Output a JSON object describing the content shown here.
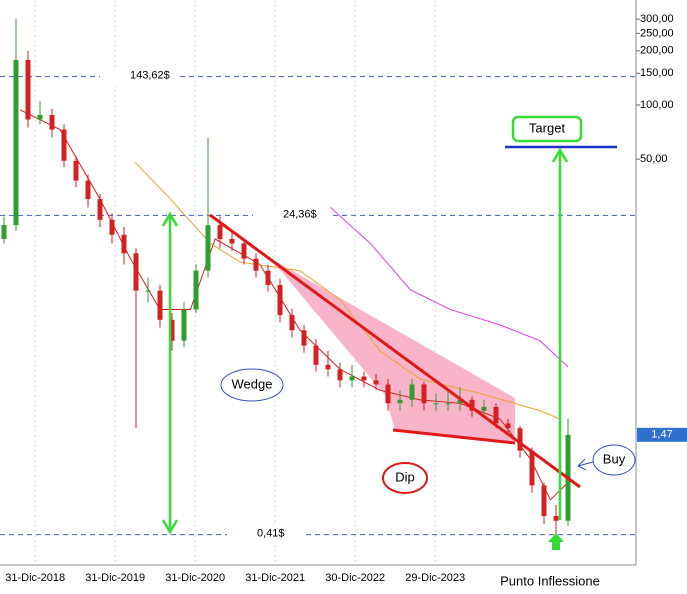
{
  "chart_data": {
    "type": "candlestick",
    "log_scale": true,
    "grid": true,
    "up_color": "#2e9e2e",
    "down_color": "#d62020",
    "ylim": [
      0.278,
      383
    ],
    "yticks": [
      {
        "value": 300,
        "label": "300,00"
      },
      {
        "value": 250,
        "label": "250,00"
      },
      {
        "value": 200,
        "label": "200,00"
      },
      {
        "value": 150,
        "label": "150,00"
      },
      {
        "value": 100,
        "label": "100,00"
      },
      {
        "value": 50,
        "label": "50,00"
      }
    ],
    "xlim": [
      2018.56,
      2026.51
    ],
    "xticks": [
      {
        "value": 2019.0,
        "label": "31-Dic-2018"
      },
      {
        "value": 2020.0,
        "label": "31-Dic-2019"
      },
      {
        "value": 2021.0,
        "label": "31-Dic-2020"
      },
      {
        "value": 2022.0,
        "label": "31-Dic-2021"
      },
      {
        "value": 2023.0,
        "label": "30-Dic-2022"
      },
      {
        "value": 2024.0,
        "label": "29-Dic-2023"
      }
    ],
    "candles": {
      "x": [
        2018.61,
        2018.76,
        2018.91,
        2019.06,
        2019.21,
        2019.36,
        2019.51,
        2019.66,
        2019.81,
        2019.96,
        2020.11,
        2020.26,
        2020.41,
        2020.56,
        2020.71,
        2020.86,
        2021.01,
        2021.16,
        2021.31,
        2021.46,
        2021.61,
        2021.76,
        2021.91,
        2022.06,
        2022.21,
        2022.36,
        2022.51,
        2022.66,
        2022.81,
        2022.96,
        2023.11,
        2023.26,
        2023.41,
        2023.56,
        2023.71,
        2023.86,
        2024.01,
        2024.16,
        2024.31,
        2024.46,
        2024.61,
        2024.76,
        2024.91,
        2025.06,
        2025.21,
        2025.36,
        2025.51,
        2025.66
      ],
      "open": [
        18,
        21.5,
        178,
        83,
        88,
        73,
        49,
        38,
        30,
        23,
        19,
        15,
        9.3,
        9.3,
        6.4,
        4.9,
        7.3,
        12,
        21.5,
        18,
        17,
        14,
        12,
        10,
        6.8,
        5.6,
        4.6,
        3.6,
        3.4,
        2.95,
        3.1,
        2.95,
        2.8,
        2.2,
        2.3,
        2.8,
        2.2,
        2.2,
        2.2,
        2.3,
        2.0,
        2.1,
        1.7,
        1.6,
        1.2,
        0.77,
        0.52,
        0.49
      ],
      "high": [
        24,
        300,
        200,
        105,
        95,
        78,
        52,
        41,
        32,
        25,
        21,
        16,
        11,
        10,
        7,
        8,
        13,
        66,
        24,
        20,
        18,
        15,
        13,
        10.8,
        7.4,
        6,
        5,
        4.3,
        3.7,
        3.6,
        3.3,
        3.2,
        3,
        2.6,
        3,
        2.9,
        2.5,
        2.6,
        2.7,
        2.4,
        2.3,
        2.2,
        1.8,
        1.65,
        1.25,
        0.8,
        0.6,
        1.8
      ],
      "low": [
        17,
        20,
        75,
        78,
        66,
        45,
        35,
        27,
        21,
        17,
        13,
        1.6,
        8,
        5.8,
        4.3,
        4.5,
        7,
        11,
        16,
        15.5,
        13,
        11,
        9.2,
        6.2,
        5.1,
        4.2,
        3.3,
        3.1,
        2.7,
        2.7,
        2.7,
        2.6,
        2,
        2,
        2.1,
        2,
        2,
        2,
        2,
        1.85,
        1.9,
        1.6,
        1.5,
        1.1,
        0.7,
        0.47,
        0.41,
        0.46
      ],
      "close": [
        21.5,
        178,
        83,
        88,
        73,
        49,
        38,
        30,
        23,
        19,
        15,
        9.3,
        9.3,
        6.4,
        4.9,
        7.3,
        12,
        21.5,
        18,
        17,
        14,
        12,
        10,
        6.8,
        5.6,
        4.6,
        3.6,
        3.4,
        2.95,
        3.1,
        2.95,
        2.8,
        2.2,
        2.3,
        2.8,
        2.2,
        2.2,
        2.2,
        2.3,
        2.0,
        2.1,
        1.7,
        1.6,
        1.2,
        0.77,
        0.52,
        0.49,
        1.47
      ]
    },
    "moving_averages": [
      {
        "color": "#d62020",
        "x": [
          2018.81,
          2019.31,
          2019.81,
          2020.19,
          2020.56,
          2020.94,
          2021.25,
          2021.81,
          2022.31,
          2022.81,
          2023.31,
          2023.81,
          2024.31,
          2024.81,
          2025.19,
          2025.44,
          2025.66
        ],
        "values": [
          94,
          73,
          30,
          14,
          7.3,
          7.3,
          18,
          13,
          5.6,
          3.4,
          2.6,
          2.3,
          2.2,
          1.8,
          1.08,
          0.64,
          0.8
        ]
      },
      {
        "color": "#f0a030",
        "x": [
          2020.25,
          2020.69,
          2021.19,
          2021.56,
          2022.31,
          2022.81,
          2023.31,
          2023.81,
          2024.56,
          2025.31,
          2025.56
        ],
        "values": [
          48,
          30,
          17,
          13.4,
          12,
          8.3,
          4.3,
          3,
          2.5,
          2,
          1.8
        ]
      },
      {
        "color": "#e040e0",
        "x": [
          2022.69,
          2023.19,
          2023.69,
          2024.19,
          2024.81,
          2025.31,
          2025.66
        ],
        "values": [
          27,
          17,
          9.4,
          7.3,
          6,
          4.9,
          3.5
        ]
      }
    ],
    "price_levels": [
      {
        "value": 143.62,
        "label": "143,62$"
      },
      {
        "value": 24.36,
        "label": "24,36$"
      },
      {
        "value": 0.41,
        "label": "0,41$"
      }
    ],
    "last_price": {
      "value": 1.47,
      "label": "1,47"
    },
    "notes": {
      "target": "Target",
      "wedge": "Wedge",
      "dip": "Dip",
      "buy": "Buy",
      "inflection": "Punto Inflessione"
    }
  }
}
